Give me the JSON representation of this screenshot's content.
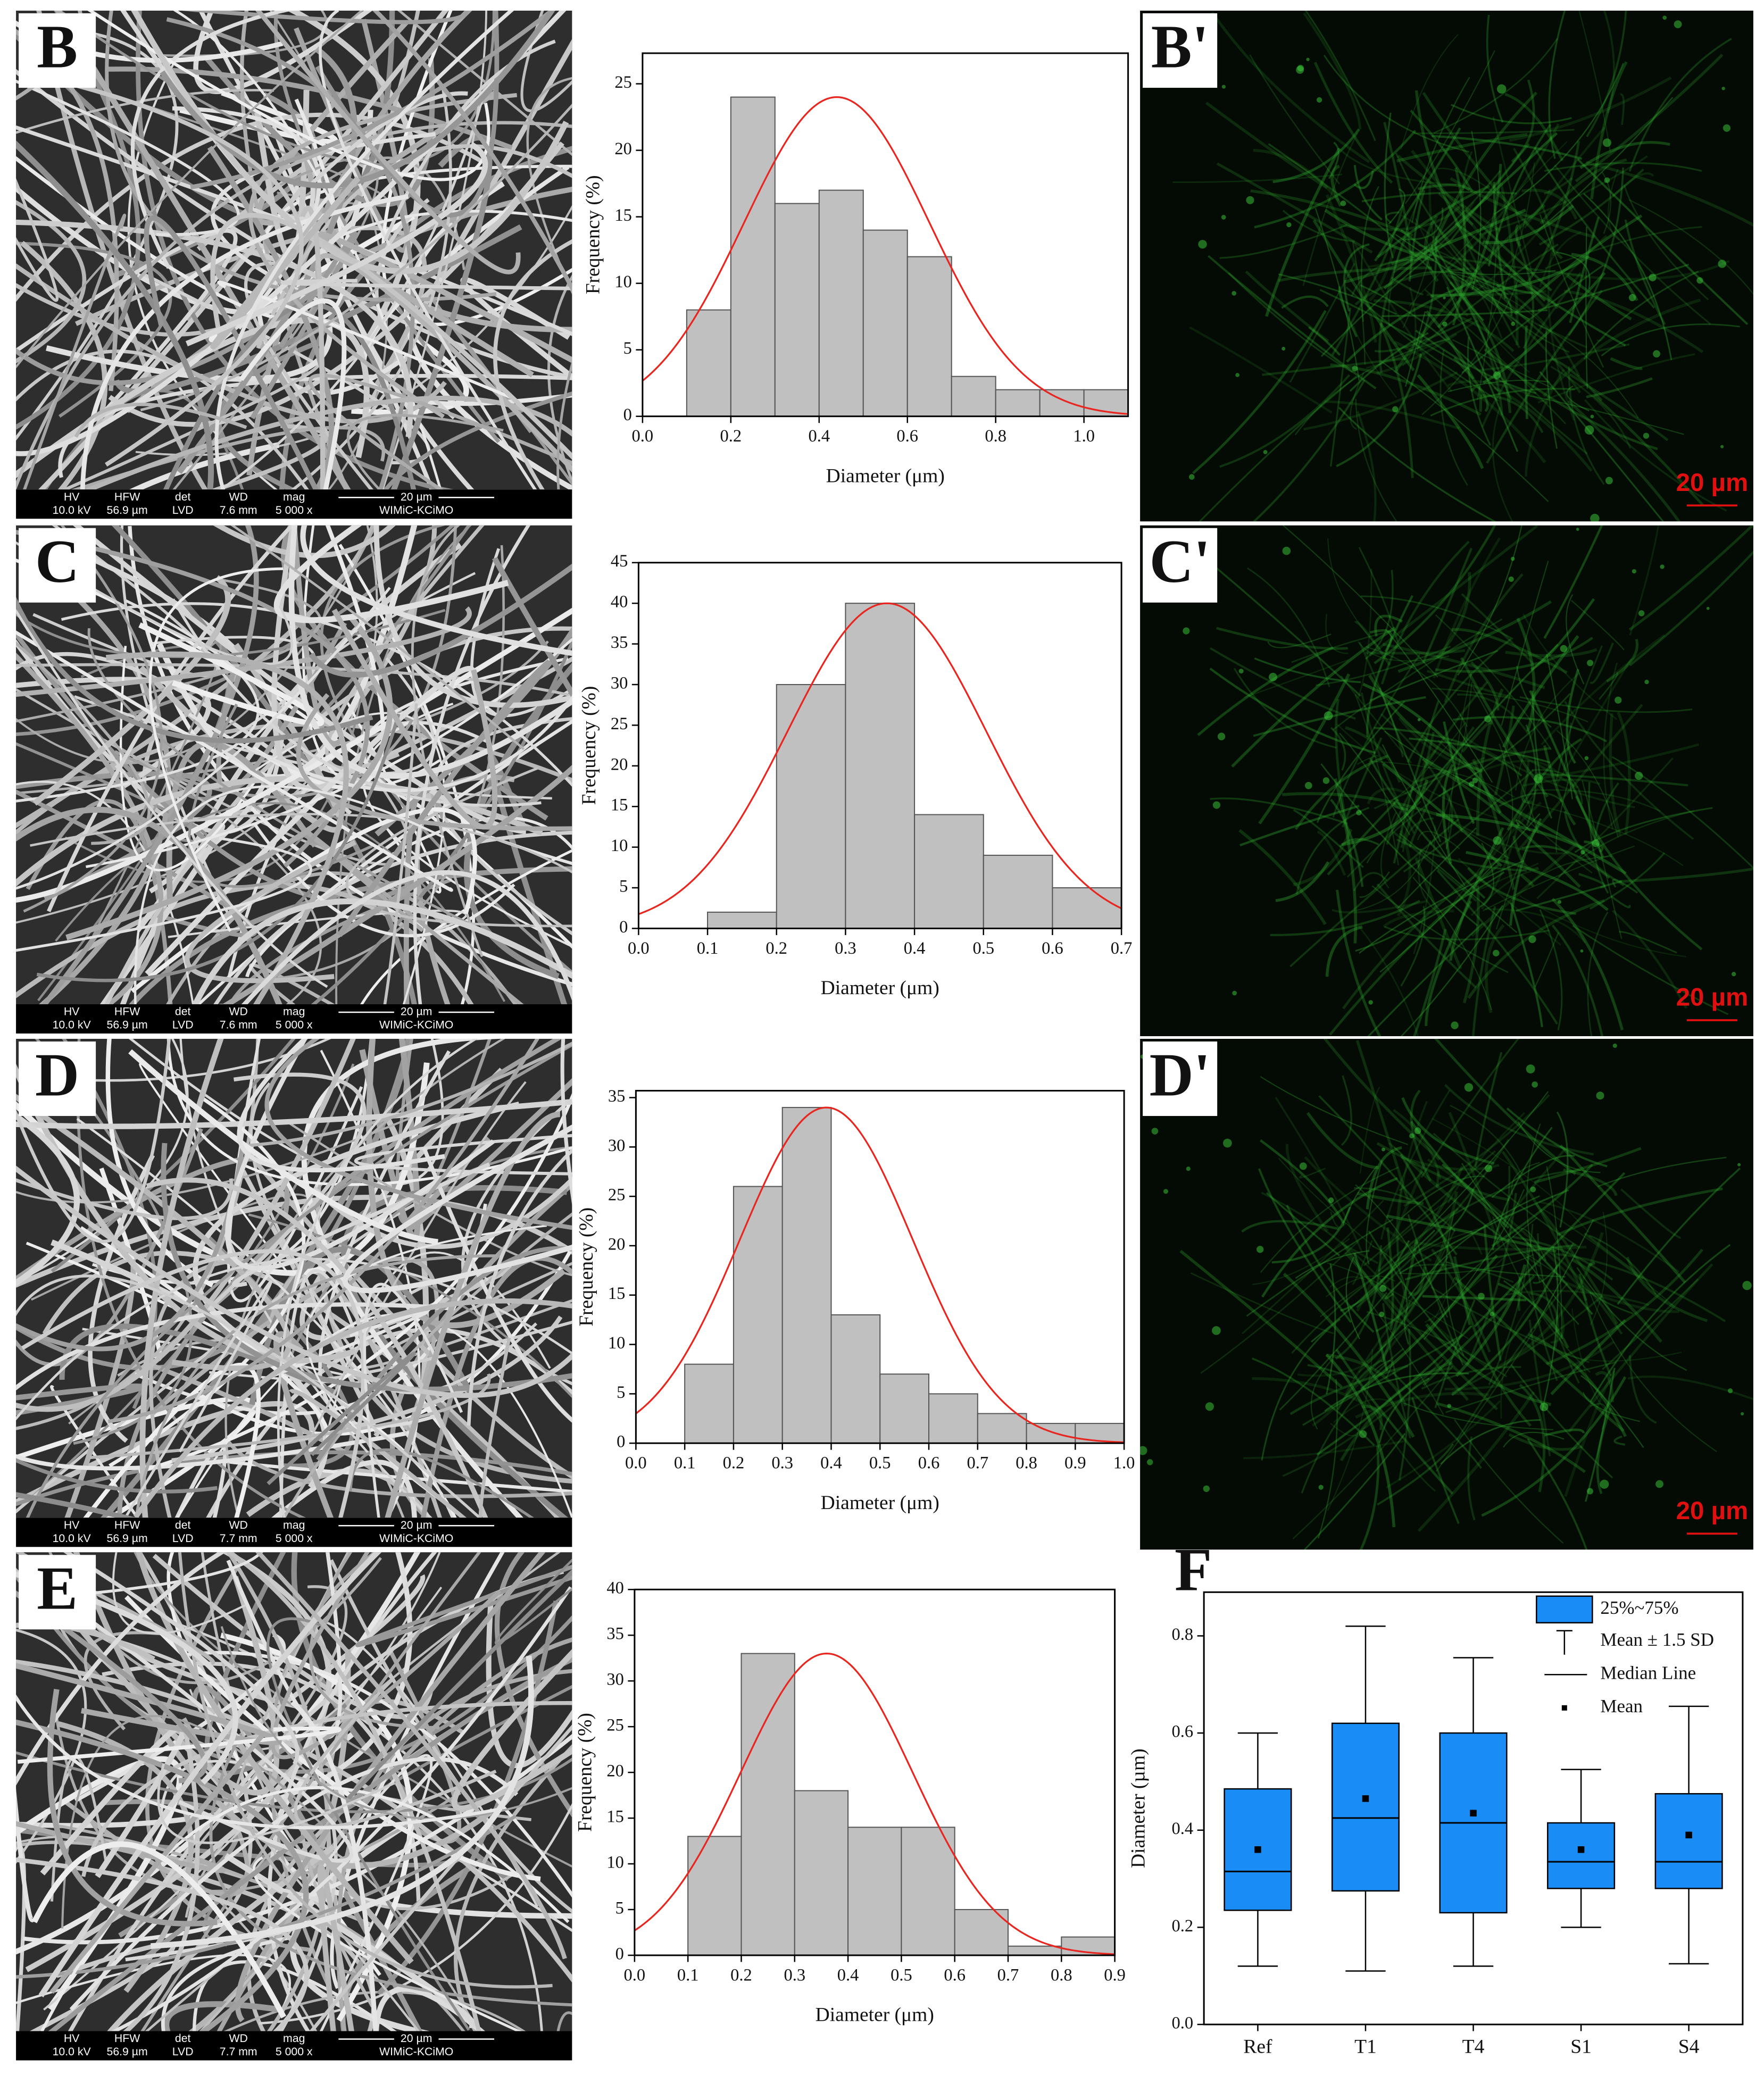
{
  "sem_images": [
    {
      "label": "B",
      "info_header": [
        "HV",
        "HFW",
        "det",
        "WD",
        "mag",
        "20 µm"
      ],
      "info_values": [
        "10.0 kV",
        "56.9 µm",
        "LVD",
        "7.6 mm",
        "5 000 x",
        "WIMiC-KCiMO"
      ]
    },
    {
      "label": "C",
      "info_header": [
        "HV",
        "HFW",
        "det",
        "WD",
        "mag",
        "20 µm"
      ],
      "info_values": [
        "10.0 kV",
        "56.9 µm",
        "LVD",
        "7.6 mm",
        "5 000 x",
        "WIMiC-KCiMO"
      ]
    },
    {
      "label": "D",
      "info_header": [
        "HV",
        "HFW",
        "det",
        "WD",
        "mag",
        "20 µm"
      ],
      "info_values": [
        "10.0 kV",
        "56.9 µm",
        "LVD",
        "7.7 mm",
        "5 000 x",
        "WIMiC-KCiMO"
      ]
    },
    {
      "label": "E",
      "info_header": [
        "HV",
        "HFW",
        "det",
        "WD",
        "mag",
        "20 µm"
      ],
      "info_values": [
        "10.0 kV",
        "56.9 µm",
        "LVD",
        "7.7 mm",
        "5 000 x",
        "WIMiC-KCiMO"
      ]
    }
  ],
  "fluorescence_images": [
    {
      "label": "B'",
      "scale_bar": "20 µm"
    },
    {
      "label": "C'",
      "scale_bar": "20 µm"
    },
    {
      "label": "D'",
      "scale_bar": "20 µm"
    }
  ],
  "chart_data": [
    {
      "type": "histogram",
      "x_label": "Diameter (μm)",
      "y_label": "Frequency (%)",
      "color": "#c0c0c0",
      "fit_color": "#e8261f",
      "bins": [
        0.1,
        0.2,
        0.3,
        0.4,
        0.5,
        0.6,
        0.7,
        0.8,
        0.9,
        1.0,
        1.1
      ],
      "values": [
        8,
        24,
        16,
        17,
        14,
        12,
        3,
        2,
        2,
        2
      ],
      "fit": {
        "peak": 24,
        "mean": 0.44,
        "sd": 0.21
      },
      "xlim": [
        0,
        1.1
      ],
      "xticks": [
        {
          "value": 0,
          "label": "0.0"
        },
        0.2,
        0.4,
        0.6,
        0.8,
        {
          "value": 1,
          "label": "1.0"
        }
      ],
      "ylim": [
        0,
        27.3
      ],
      "yticks": [
        0,
        5,
        10,
        15,
        20,
        25
      ]
    },
    {
      "type": "histogram",
      "x_label": "Diameter (μm)",
      "y_label": "Frequency (%)",
      "color": "#c0c0c0",
      "fit_color": "#e8261f",
      "bins": [
        0.1,
        0.2,
        0.3,
        0.4,
        0.5,
        0.6,
        0.7
      ],
      "values": [
        2,
        30,
        40,
        14,
        9,
        5
      ],
      "fit": {
        "peak": 40,
        "mean": 0.36,
        "sd": 0.144
      },
      "xlim": [
        0,
        0.7
      ],
      "xticks": [
        {
          "value": 0,
          "label": "0.0"
        },
        0.1,
        0.2,
        0.3,
        0.4,
        0.5,
        0.6,
        0.7
      ],
      "ylim": [
        0,
        45
      ],
      "yticks": [
        0,
        5,
        10,
        15,
        20,
        25,
        30,
        35,
        40,
        45
      ]
    },
    {
      "type": "histogram",
      "x_label": "Diameter (μm)",
      "y_label": "Frequency (%)",
      "color": "#c0c0c0",
      "fit_color": "#e8261f",
      "bins": [
        0.1,
        0.2,
        0.3,
        0.4,
        0.5,
        0.6,
        0.7,
        0.8,
        0.9,
        1.0
      ],
      "values": [
        8,
        26,
        34,
        13,
        7,
        5,
        3,
        2,
        2
      ],
      "fit": {
        "peak": 34,
        "mean": 0.39,
        "sd": 0.177
      },
      "xlim": [
        0,
        1.0
      ],
      "xticks": [
        {
          "value": 0,
          "label": "0.0"
        },
        0.1,
        0.2,
        0.3,
        0.4,
        0.5,
        0.6,
        0.7,
        0.8,
        0.9,
        {
          "value": 1,
          "label": "1.0"
        }
      ],
      "ylim": [
        0,
        35.7
      ],
      "yticks": [
        0,
        5,
        10,
        15,
        20,
        25,
        30,
        35
      ]
    },
    {
      "type": "histogram",
      "x_label": "Diameter (μm)",
      "y_label": "Frequency (%)",
      "color": "#c0c0c0",
      "fit_color": "#e8261f",
      "bins": [
        0.1,
        0.2,
        0.3,
        0.4,
        0.5,
        0.6,
        0.7,
        0.8,
        0.9
      ],
      "values": [
        13,
        33,
        18,
        14,
        14,
        5,
        1,
        2
      ],
      "fit": {
        "peak": 33,
        "mean": 0.36,
        "sd": 0.161
      },
      "xlim": [
        0,
        0.9
      ],
      "xticks": [
        {
          "value": 0,
          "label": "0.0"
        },
        0.1,
        0.2,
        0.3,
        0.4,
        0.5,
        0.6,
        0.7,
        0.8,
        0.9
      ],
      "ylim": [
        0,
        40
      ],
      "yticks": [
        0,
        5,
        10,
        15,
        20,
        25,
        30,
        35,
        40
      ]
    },
    {
      "type": "box",
      "panel_label": "F",
      "y_label": "Diameter (µm)",
      "color": "#1a8cf5",
      "categories": [
        "Ref",
        "T1",
        "T4",
        "S1",
        "S4"
      ],
      "lower": [
        0.12,
        0.11,
        0.12,
        0.2,
        0.125
      ],
      "q1": [
        0.235,
        0.275,
        0.23,
        0.28,
        0.28
      ],
      "median": [
        0.315,
        0.425,
        0.415,
        0.335,
        0.335
      ],
      "q3": [
        0.485,
        0.62,
        0.6,
        0.415,
        0.475
      ],
      "upper": [
        0.6,
        0.82,
        0.755,
        0.525,
        0.655
      ],
      "mean": [
        0.36,
        0.465,
        0.435,
        0.36,
        0.39
      ],
      "legend": [
        "25%~75%",
        "Mean ± 1.5 SD",
        "Median Line",
        "Mean"
      ],
      "ylim": [
        0,
        0.89
      ],
      "yticks": [
        {
          "value": 0,
          "label": "0.0"
        },
        0.2,
        0.4,
        0.6,
        0.8
      ]
    }
  ]
}
